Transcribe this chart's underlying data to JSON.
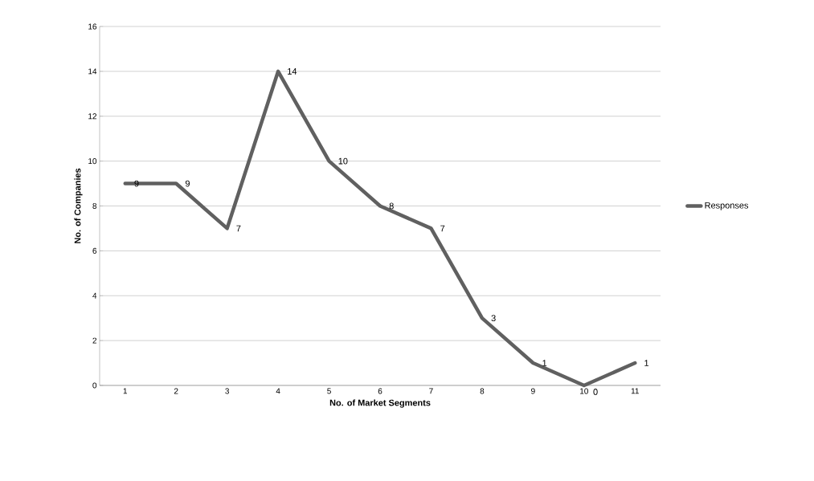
{
  "chart_data": {
    "type": "line",
    "xlabel": "No. of Market Segments",
    "ylabel": "No. of Companies",
    "categories": [
      "1",
      "2",
      "3",
      "4",
      "5",
      "6",
      "7",
      "8",
      "9",
      "10",
      "11"
    ],
    "series": [
      {
        "name": "Responses",
        "color": "#606060",
        "values": [
          9,
          9,
          7,
          14,
          10,
          8,
          7,
          3,
          1,
          0,
          1
        ]
      }
    ],
    "ylim": [
      0,
      16
    ],
    "yticks": [
      0,
      2,
      4,
      6,
      8,
      10,
      12,
      14,
      16
    ],
    "grid": "y",
    "legend": "right",
    "data_labels": true,
    "marker": "none",
    "line_style": "solid"
  }
}
